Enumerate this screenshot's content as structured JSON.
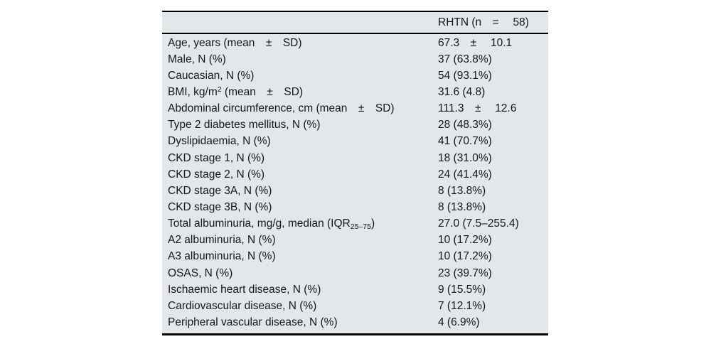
{
  "colors": {
    "table_bg": "#e3e7e9",
    "rule": "#000000",
    "text": "#161616",
    "page_bg": "#ffffff"
  },
  "table": {
    "header": {
      "label_column": "",
      "value_column": "RHTN (n =  58)"
    },
    "rows": [
      {
        "label": [
          {
            "t": "Age, years (mean ± SD)"
          }
        ],
        "value": "67.3 ±  10.1"
      },
      {
        "label": [
          {
            "t": "Male, N (%)"
          }
        ],
        "value": "37 (63.8%)"
      },
      {
        "label": [
          {
            "t": "Caucasian, N (%)"
          }
        ],
        "value": "54 (93.1%)"
      },
      {
        "label": [
          {
            "t": "BMI, kg/m"
          },
          {
            "t": "2",
            "s": "sup"
          },
          {
            "t": " (mean ± SD)"
          }
        ],
        "value": "31.6 (4.8)"
      },
      {
        "label": [
          {
            "t": "Abdominal circumference, cm (mean ± SD)"
          }
        ],
        "value": "111.3 ±  12.6"
      },
      {
        "label": [
          {
            "t": "Type 2 diabetes mellitus, N (%)"
          }
        ],
        "value": "28 (48.3%)"
      },
      {
        "label": [
          {
            "t": "Dyslipidaemia, N (%)"
          }
        ],
        "value": "41 (70.7%)"
      },
      {
        "label": [
          {
            "t": "CKD stage 1, N (%)"
          }
        ],
        "value": "18 (31.0%)"
      },
      {
        "label": [
          {
            "t": "CKD stage 2, N (%)"
          }
        ],
        "value": "24 (41.4%)"
      },
      {
        "label": [
          {
            "t": "CKD stage 3A, N (%)"
          }
        ],
        "value": "8 (13.8%)"
      },
      {
        "label": [
          {
            "t": "CKD stage 3B, N (%)"
          }
        ],
        "value": "8 (13.8%)"
      },
      {
        "label": [
          {
            "t": "Total albuminuria, mg/g, median (IQR"
          },
          {
            "t": "25–75",
            "s": "sub"
          },
          {
            "t": ")"
          }
        ],
        "value": "27.0 (7.5–255.4)"
      },
      {
        "label": [
          {
            "t": "A2 albuminuria, N (%)"
          }
        ],
        "value": "10 (17.2%)"
      },
      {
        "label": [
          {
            "t": "A3 albuminuria, N (%)"
          }
        ],
        "value": "10 (17.2%)"
      },
      {
        "label": [
          {
            "t": "OSAS, N (%)"
          }
        ],
        "value": "23 (39.7%)"
      },
      {
        "label": [
          {
            "t": "Ischaemic heart disease, N (%)"
          }
        ],
        "value": "9 (15.5%)"
      },
      {
        "label": [
          {
            "t": "Cardiovascular disease, N (%)"
          }
        ],
        "value": "7 (12.1%)"
      },
      {
        "label": [
          {
            "t": "Peripheral vascular disease, N (%)"
          }
        ],
        "value": "4 (6.9%)"
      }
    ]
  }
}
